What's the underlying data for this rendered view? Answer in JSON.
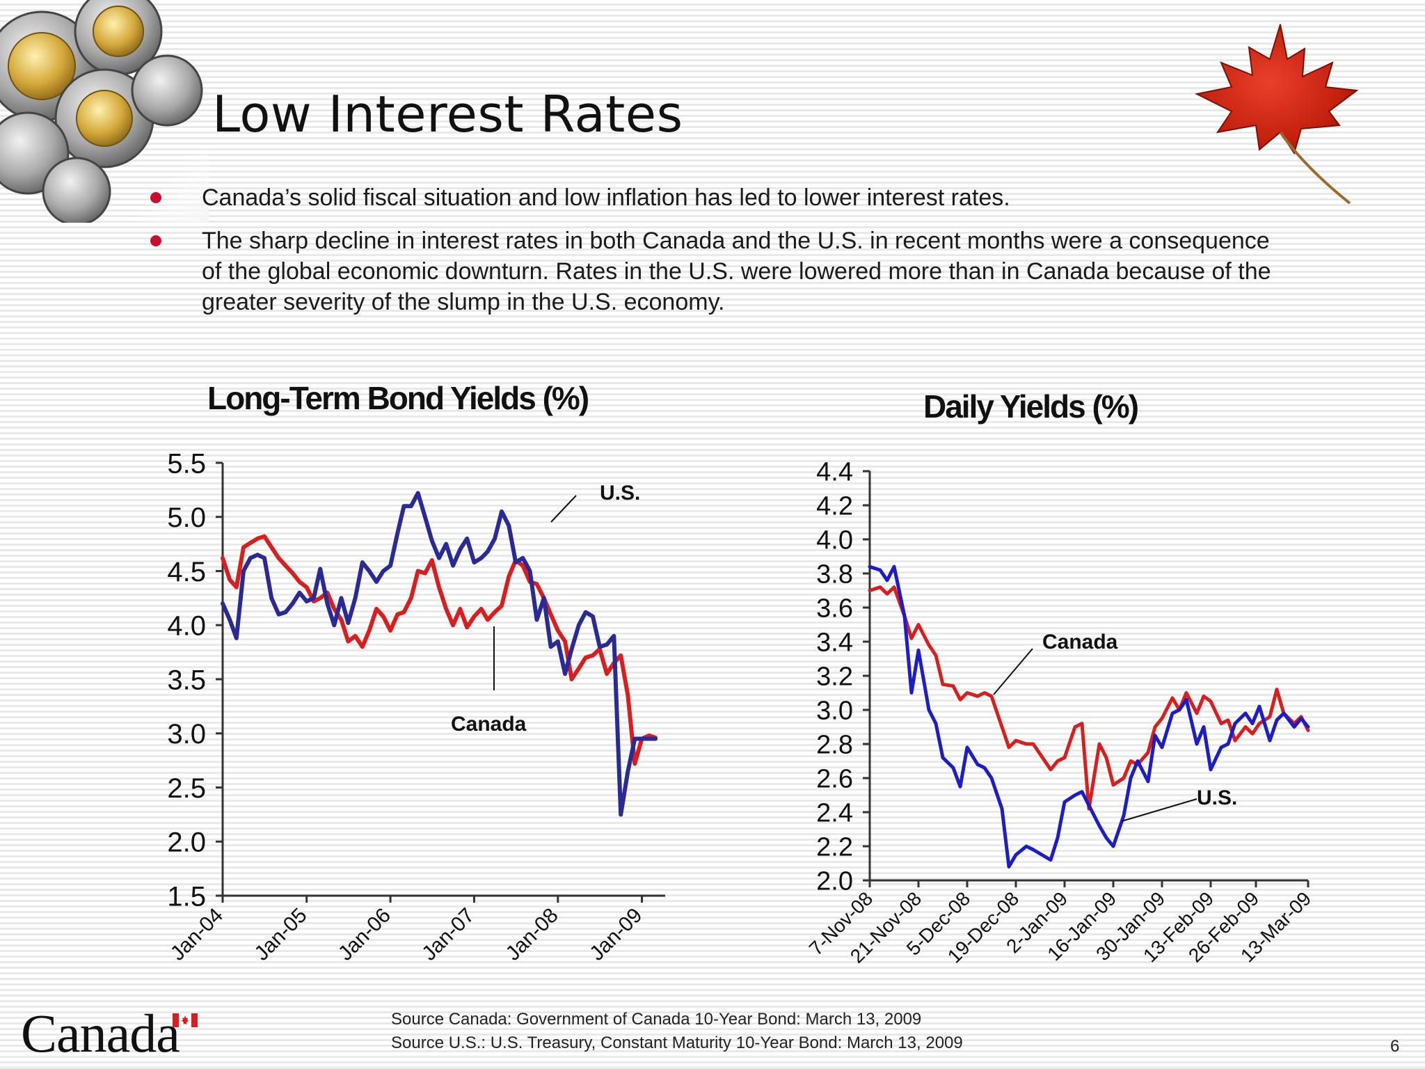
{
  "slide": {
    "title": "Low Interest Rates",
    "bullets": [
      "Canada’s solid fiscal situation and low inflation has led to lower interest rates.",
      "The sharp decline in interest rates in both Canada and the U.S. in recent months were a consequence of the global economic downturn. Rates in the U.S. were lowered more than in Canada because of the greater severity of the slump in the U.S. economy."
    ],
    "sources": [
      "Source Canada: Government of Canada 10-Year Bond: March 13, 2009",
      "Source U.S.: U.S. Treasury, Constant Maturity 10-Year Bond: March 13, 2009"
    ],
    "wordmark": "Canada",
    "page_number": "6"
  },
  "colors": {
    "canada": "#d81e1e",
    "us": "#2a2a96",
    "bullet": "#c8102e"
  },
  "chart_data": [
    {
      "type": "line",
      "title": "Long-Term Bond Yields (%)",
      "xlabel": "",
      "ylabel": "",
      "ylim": [
        1.5,
        5.5
      ],
      "yticks": [
        "5.5",
        "5.0",
        "4.5",
        "4.0",
        "3.5",
        "3.0",
        "2.5",
        "2.0",
        "1.5"
      ],
      "xticks": [
        "Jan-04",
        "Jan-05",
        "Jan-06",
        "Jan-07",
        "Jan-08",
        "Jan-09"
      ],
      "x_range": [
        "2004-01",
        "2009-03"
      ],
      "series": [
        {
          "name": "Canada",
          "color": "#d81e1e",
          "x": [
            "2004-01",
            "2004-02",
            "2004-03",
            "2004-04",
            "2004-05",
            "2004-06",
            "2004-07",
            "2004-08",
            "2004-09",
            "2004-10",
            "2004-11",
            "2004-12",
            "2005-01",
            "2005-02",
            "2005-03",
            "2005-04",
            "2005-05",
            "2005-06",
            "2005-07",
            "2005-08",
            "2005-09",
            "2005-10",
            "2005-11",
            "2005-12",
            "2006-01",
            "2006-02",
            "2006-03",
            "2006-04",
            "2006-05",
            "2006-06",
            "2006-07",
            "2006-08",
            "2006-09",
            "2006-10",
            "2006-11",
            "2006-12",
            "2007-01",
            "2007-02",
            "2007-03",
            "2007-04",
            "2007-05",
            "2007-06",
            "2007-07",
            "2007-08",
            "2007-09",
            "2007-10",
            "2007-11",
            "2007-12",
            "2008-01",
            "2008-02",
            "2008-03",
            "2008-04",
            "2008-05",
            "2008-06",
            "2008-07",
            "2008-08",
            "2008-09",
            "2008-10",
            "2008-11",
            "2008-12",
            "2009-01",
            "2009-02",
            "2009-03"
          ],
          "values": [
            4.62,
            4.42,
            4.35,
            4.72,
            4.76,
            4.8,
            4.82,
            4.72,
            4.62,
            4.55,
            4.48,
            4.4,
            4.35,
            4.22,
            4.25,
            4.3,
            4.15,
            4.05,
            3.85,
            3.9,
            3.8,
            3.95,
            4.15,
            4.08,
            3.95,
            4.1,
            4.12,
            4.25,
            4.5,
            4.48,
            4.6,
            4.35,
            4.15,
            4.0,
            4.15,
            3.98,
            4.08,
            4.15,
            4.05,
            4.12,
            4.18,
            4.45,
            4.6,
            4.55,
            4.4,
            4.38,
            4.25,
            4.1,
            3.95,
            3.85,
            3.5,
            3.6,
            3.7,
            3.72,
            3.78,
            3.55,
            3.65,
            3.72,
            3.35,
            2.72,
            2.95,
            2.98,
            2.96
          ]
        },
        {
          "name": "U.S.",
          "color": "#2a2a96",
          "x": [
            "2004-01",
            "2004-02",
            "2004-03",
            "2004-04",
            "2004-05",
            "2004-06",
            "2004-07",
            "2004-08",
            "2004-09",
            "2004-10",
            "2004-11",
            "2004-12",
            "2005-01",
            "2005-02",
            "2005-03",
            "2005-04",
            "2005-05",
            "2005-06",
            "2005-07",
            "2005-08",
            "2005-09",
            "2005-10",
            "2005-11",
            "2005-12",
            "2006-01",
            "2006-02",
            "2006-03",
            "2006-04",
            "2006-05",
            "2006-06",
            "2006-07",
            "2006-08",
            "2006-09",
            "2006-10",
            "2006-11",
            "2006-12",
            "2007-01",
            "2007-02",
            "2007-03",
            "2007-04",
            "2007-05",
            "2007-06",
            "2007-07",
            "2007-08",
            "2007-09",
            "2007-10",
            "2007-11",
            "2007-12",
            "2008-01",
            "2008-02",
            "2008-03",
            "2008-04",
            "2008-05",
            "2008-06",
            "2008-07",
            "2008-08",
            "2008-09",
            "2008-10",
            "2008-11",
            "2008-12",
            "2009-01",
            "2009-02",
            "2009-03"
          ],
          "values": [
            4.2,
            4.05,
            3.88,
            4.5,
            4.62,
            4.65,
            4.62,
            4.25,
            4.1,
            4.12,
            4.2,
            4.3,
            4.22,
            4.25,
            4.52,
            4.2,
            4.0,
            4.25,
            4.02,
            4.25,
            4.58,
            4.5,
            4.4,
            4.5,
            4.55,
            4.85,
            5.1,
            5.1,
            5.22,
            5.0,
            4.78,
            4.62,
            4.75,
            4.55,
            4.7,
            4.8,
            4.58,
            4.62,
            4.68,
            4.8,
            5.05,
            4.92,
            4.58,
            4.62,
            4.5,
            4.05,
            4.25,
            3.8,
            3.85,
            3.55,
            3.78,
            4.0,
            4.12,
            4.08,
            3.8,
            3.82,
            3.9,
            2.25,
            2.65,
            2.95,
            2.95,
            2.95,
            2.95
          ]
        }
      ],
      "annotations": [
        "U.S.",
        "Canada"
      ]
    },
    {
      "type": "line",
      "title": "Daily Yields (%)",
      "xlabel": "",
      "ylabel": "",
      "ylim": [
        2.0,
        4.4
      ],
      "yticks": [
        "4.4",
        "4.2",
        "4.0",
        "3.8",
        "3.6",
        "3.4",
        "3.2",
        "3.0",
        "2.8",
        "2.6",
        "2.4",
        "2.2",
        "2.0"
      ],
      "xticks": [
        "7-Nov-08",
        "21-Nov-08",
        "5-Dec-08",
        "19-Dec-08",
        "2-Jan-09",
        "16-Jan-09",
        "30-Jan-09",
        "13-Feb-09",
        "26-Feb-09",
        "13-Mar-09"
      ],
      "x_range": [
        "2008-11-07",
        "2009-03-13"
      ],
      "series": [
        {
          "name": "Canada",
          "color": "#d81e1e",
          "x": [
            "2008-11-07",
            "2008-11-10",
            "2008-11-12",
            "2008-11-14",
            "2008-11-17",
            "2008-11-19",
            "2008-11-21",
            "2008-11-24",
            "2008-11-26",
            "2008-11-28",
            "2008-12-01",
            "2008-12-03",
            "2008-12-05",
            "2008-12-08",
            "2008-12-10",
            "2008-12-12",
            "2008-12-15",
            "2008-12-17",
            "2008-12-19",
            "2008-12-22",
            "2008-12-24",
            "2008-12-29",
            "2008-12-31",
            "2009-01-02",
            "2009-01-05",
            "2009-01-07",
            "2009-01-09",
            "2009-01-12",
            "2009-01-14",
            "2009-01-16",
            "2009-01-19",
            "2009-01-21",
            "2009-01-23",
            "2009-01-26",
            "2009-01-28",
            "2009-01-30",
            "2009-02-02",
            "2009-02-04",
            "2009-02-06",
            "2009-02-09",
            "2009-02-11",
            "2009-02-13",
            "2009-02-16",
            "2009-02-18",
            "2009-02-20",
            "2009-02-23",
            "2009-02-25",
            "2009-02-27",
            "2009-03-02",
            "2009-03-04",
            "2009-03-06",
            "2009-03-09",
            "2009-03-11",
            "2009-03-13"
          ],
          "values": [
            3.7,
            3.72,
            3.68,
            3.72,
            3.55,
            3.42,
            3.5,
            3.38,
            3.32,
            3.15,
            3.14,
            3.06,
            3.1,
            3.08,
            3.1,
            3.08,
            2.9,
            2.78,
            2.82,
            2.8,
            2.8,
            2.65,
            2.7,
            2.72,
            2.9,
            2.92,
            2.42,
            2.8,
            2.72,
            2.56,
            2.6,
            2.7,
            2.68,
            2.75,
            2.9,
            2.95,
            3.07,
            3.0,
            3.1,
            2.98,
            3.08,
            3.05,
            2.92,
            2.94,
            2.82,
            2.9,
            2.86,
            2.92,
            2.96,
            3.12,
            2.98,
            2.92,
            2.96,
            2.88
          ]
        },
        {
          "name": "U.S.",
          "color": "#1d1dc8",
          "x": [
            "2008-11-07",
            "2008-11-10",
            "2008-11-12",
            "2008-11-14",
            "2008-11-17",
            "2008-11-19",
            "2008-11-21",
            "2008-11-24",
            "2008-11-26",
            "2008-11-28",
            "2008-12-01",
            "2008-12-03",
            "2008-12-05",
            "2008-12-08",
            "2008-12-10",
            "2008-12-12",
            "2008-12-15",
            "2008-12-17",
            "2008-12-19",
            "2008-12-22",
            "2008-12-24",
            "2008-12-29",
            "2008-12-31",
            "2009-01-02",
            "2009-01-05",
            "2009-01-07",
            "2009-01-09",
            "2009-01-12",
            "2009-01-14",
            "2009-01-16",
            "2009-01-19",
            "2009-01-21",
            "2009-01-23",
            "2009-01-26",
            "2009-01-28",
            "2009-01-30",
            "2009-02-02",
            "2009-02-04",
            "2009-02-06",
            "2009-02-09",
            "2009-02-11",
            "2009-02-13",
            "2009-02-16",
            "2009-02-18",
            "2009-02-20",
            "2009-02-23",
            "2009-02-25",
            "2009-02-27",
            "2009-03-02",
            "2009-03-04",
            "2009-03-06",
            "2009-03-09",
            "2009-03-11",
            "2009-03-13"
          ],
          "values": [
            3.84,
            3.82,
            3.76,
            3.84,
            3.55,
            3.1,
            3.35,
            3.0,
            2.92,
            2.72,
            2.66,
            2.55,
            2.78,
            2.68,
            2.66,
            2.6,
            2.42,
            2.08,
            2.15,
            2.2,
            2.18,
            2.12,
            2.25,
            2.46,
            2.5,
            2.52,
            2.44,
            2.32,
            2.25,
            2.2,
            2.38,
            2.6,
            2.7,
            2.58,
            2.85,
            2.78,
            2.98,
            3.0,
            3.06,
            2.8,
            2.9,
            2.65,
            2.78,
            2.8,
            2.92,
            2.98,
            2.92,
            3.02,
            2.82,
            2.94,
            2.98,
            2.9,
            2.95,
            2.9
          ]
        }
      ],
      "annotations": [
        "Canada",
        "U.S."
      ]
    }
  ]
}
